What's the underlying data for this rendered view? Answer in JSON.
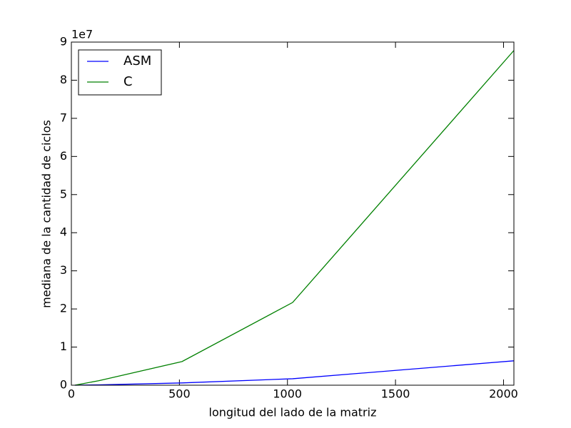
{
  "chart_data": {
    "type": "line",
    "x_label": "longitud del lado de la matriz",
    "y_label": "mediana de la cantidad de ciclos",
    "y_offset_label": "1e7",
    "x": [
      16,
      128,
      512,
      1024,
      2048
    ],
    "series": [
      {
        "name": "ASM",
        "color": "#0000ff",
        "values": [
          0,
          0.01,
          0.06,
          0.17,
          0.64
        ]
      },
      {
        "name": "C",
        "color": "#008000",
        "values": [
          0,
          0.12,
          0.62,
          2.17,
          8.78
        ]
      }
    ],
    "xlim": [
      0,
      2048
    ],
    "xticks": [
      0,
      500,
      1000,
      1500,
      2000
    ],
    "ylim": [
      0,
      9
    ],
    "yticks": [
      0,
      1,
      2,
      3,
      4,
      5,
      6,
      7,
      8,
      9
    ],
    "legend": "upper left"
  }
}
